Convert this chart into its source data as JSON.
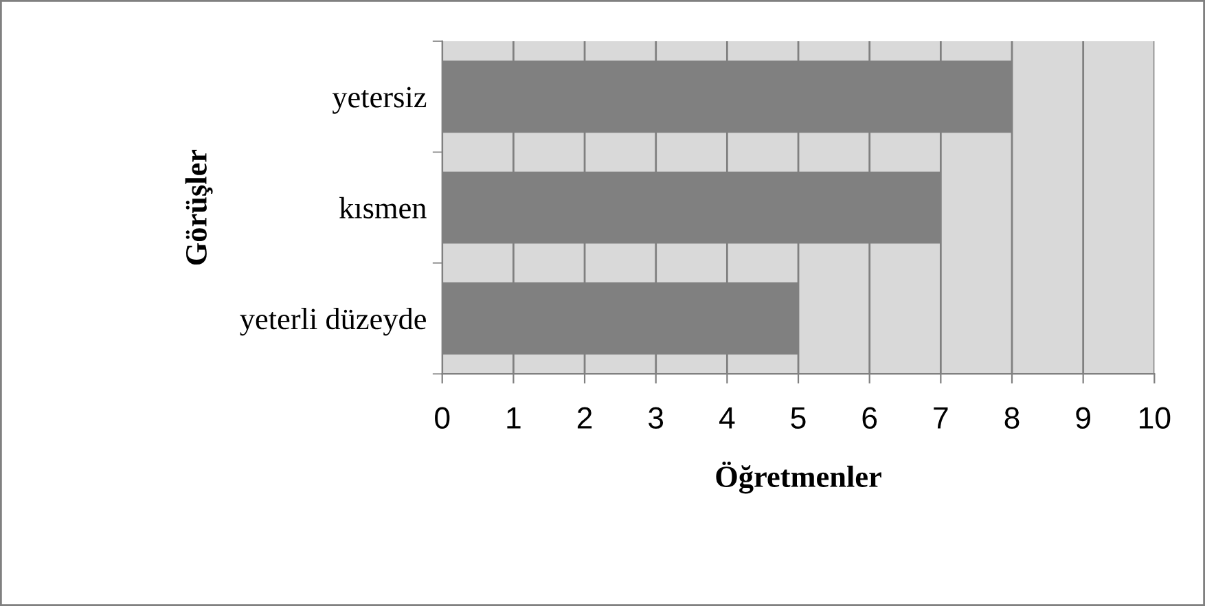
{
  "chart_data": {
    "type": "bar",
    "orientation": "horizontal",
    "categories": [
      "yetersiz",
      "kısmen",
      "yeterli düzeyde"
    ],
    "values": [
      8,
      7,
      5
    ],
    "color": "#808080",
    "xlabel": "Öğretmenler",
    "ylabel": "Görüşler",
    "xlim": [
      0,
      10
    ],
    "xticks": [
      0,
      1,
      2,
      3,
      4,
      5,
      6,
      7,
      8,
      9,
      10
    ],
    "grid": "x",
    "legend": false
  }
}
